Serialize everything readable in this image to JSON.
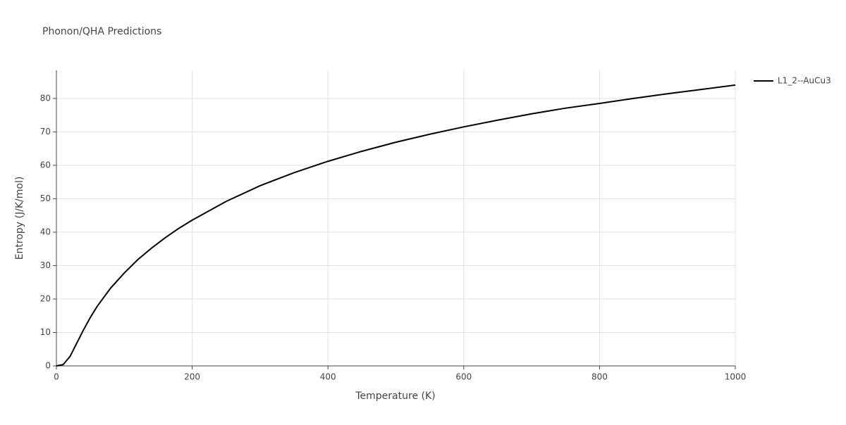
{
  "chart_data": {
    "type": "line",
    "title": "Phonon/QHA Predictions",
    "x_label": "Temperature (K)",
    "y_label": "Entropy (J/K/mol)",
    "x": [
      0,
      10,
      20,
      30,
      40,
      50,
      60,
      80,
      100,
      120,
      140,
      160,
      180,
      200,
      250,
      300,
      350,
      400,
      450,
      500,
      550,
      600,
      650,
      700,
      750,
      800,
      850,
      900,
      950,
      1000
    ],
    "series": [
      {
        "name": "L1_2--AuCu3",
        "color": "#000000",
        "values": [
          0,
          0.4,
          2.8,
          6.8,
          10.8,
          14.5,
          17.8,
          23.3,
          27.8,
          31.8,
          35.2,
          38.3,
          41.1,
          43.6,
          49.2,
          53.9,
          57.8,
          61.2,
          64.2,
          66.9,
          69.3,
          71.5,
          73.5,
          75.4,
          77.1,
          78.5,
          80,
          81.4,
          82.7,
          84
        ]
      }
    ],
    "xlim": [
      0,
      1000
    ],
    "xticks": [
      0,
      200,
      400,
      600,
      800,
      1000
    ],
    "ylim": [
      0,
      88.4
    ],
    "yticks": [
      0,
      10,
      20,
      30,
      40,
      50,
      60,
      70,
      80
    ],
    "grid": true,
    "legend": "right"
  }
}
